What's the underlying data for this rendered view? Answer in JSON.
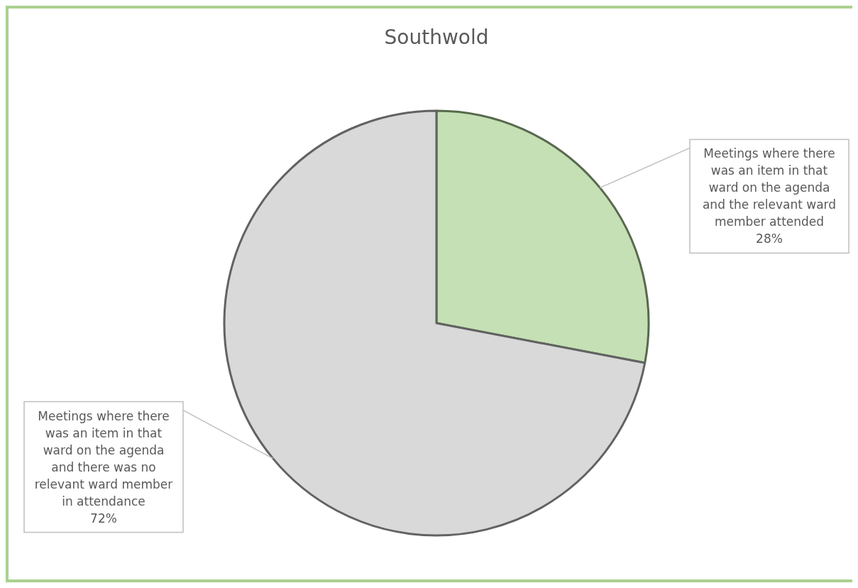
{
  "chart_data": {
    "type": "pie",
    "title": "Southwold",
    "categories": [
      "Meetings where there was an item in that ward on the agenda and the relevant ward member attended",
      "Meetings where there was an item in that ward on the agenda and there was no relevant ward member in attendance"
    ],
    "values": [
      28,
      72
    ],
    "value_labels": [
      "28%",
      "72%"
    ],
    "colors": [
      "#c5e0b4",
      "#d9d9d9"
    ]
  }
}
